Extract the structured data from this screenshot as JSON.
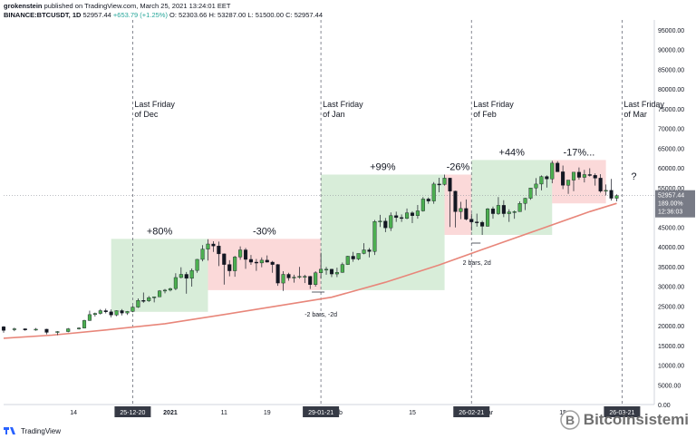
{
  "header": {
    "author": "grokenstein",
    "published": "published on TradingView.com, March 25, 2021 13:24:01 EET",
    "symbol": "BINANCE:BTCUSDT, 1D",
    "last": "52957.44",
    "change": "+653.79 (+1.25%)",
    "open": "O: 52303.66",
    "high": "H: 53287.00",
    "low": "L: 51500.00",
    "close": "C: 52957.44"
  },
  "footer": {
    "brand": "TradingView"
  },
  "watermark": {
    "text": "Bitcoinsistemi"
  },
  "colors": {
    "up": "#4caf50",
    "down": "#131722",
    "ma": "#e8867a",
    "green_zone": "rgba(76,175,80,0.22)",
    "red_zone": "rgba(239,83,80,0.22)"
  },
  "chart_data": {
    "type": "candlestick",
    "y_axis_ticks": [
      95000,
      90000,
      85000,
      80000,
      75000,
      70000,
      65000,
      60000,
      55000,
      50000,
      45000,
      40000,
      35000,
      30000,
      25000,
      20000,
      15000,
      10000,
      5000,
      0
    ],
    "ylim": [
      0,
      97500
    ],
    "price_label": {
      "value": "52957.44",
      "pct": "189.00%",
      "time": "12:36:03"
    },
    "x_ticks": [
      "14",
      "2021",
      "11",
      "19",
      "Feb",
      "15",
      "Mar",
      "15"
    ],
    "x_date_labels": [
      "25-12-20",
      "29-01-21",
      "26-02-21",
      "26-03-21"
    ],
    "vertical_lines": [
      {
        "label": "Last Friday\nof Dec",
        "date": "2020-12-25"
      },
      {
        "label": "Last Friday\nof Jan",
        "date": "2021-01-29"
      },
      {
        "label": "Last Friday\nof Feb",
        "date": "2021-02-26"
      },
      {
        "label": "Last Friday\nof Mar",
        "date": "2021-03-26"
      }
    ],
    "zones": [
      {
        "label": "+80%",
        "kind": "up",
        "from": "2020-12-21",
        "to": "2021-01-08",
        "low": 23500,
        "high": 42000
      },
      {
        "label": "-30%",
        "kind": "down",
        "from": "2021-01-08",
        "to": "2021-01-29",
        "low": 29000,
        "high": 42000
      },
      {
        "label": "+99%",
        "kind": "up",
        "from": "2021-01-29",
        "to": "2021-02-21",
        "low": 29000,
        "high": 58300
      },
      {
        "label": "-26%",
        "kind": "down",
        "from": "2021-02-21",
        "to": "2021-02-26",
        "low": 43000,
        "high": 58300
      },
      {
        "label": "+44%",
        "kind": "up",
        "from": "2021-02-26",
        "to": "2021-03-13",
        "low": 43000,
        "high": 62000
      },
      {
        "label": "-17%...",
        "kind": "down",
        "from": "2021-03-13",
        "to": "2021-03-23",
        "low": 51000,
        "high": 62000
      }
    ],
    "annotations": [
      {
        "text": "-2 bars, -2d",
        "date": "2021-01-29"
      },
      {
        "text": "2 bars, 2d",
        "date": "2021-02-26"
      },
      {
        "text": "?",
        "date": "2021-03-26"
      }
    ],
    "ohlc": [
      [
        "2020-12-01",
        19700,
        19900,
        18200,
        18800
      ],
      [
        "2020-12-03",
        19000,
        19500,
        18600,
        19200
      ],
      [
        "2020-12-05",
        19200,
        19300,
        18700,
        18900
      ],
      [
        "2020-12-07",
        18900,
        19400,
        18700,
        19100
      ],
      [
        "2020-12-09",
        19100,
        19200,
        17800,
        18300
      ],
      [
        "2020-12-11",
        18300,
        18600,
        17600,
        18500
      ],
      [
        "2020-12-13",
        18500,
        19400,
        18300,
        19200
      ],
      [
        "2020-12-15",
        19200,
        19600,
        19000,
        19400
      ],
      [
        "2020-12-16",
        19400,
        21500,
        19300,
        21300
      ],
      [
        "2020-12-17",
        21300,
        23800,
        21200,
        22800
      ],
      [
        "2020-12-18",
        22800,
        23300,
        22300,
        23100
      ],
      [
        "2020-12-19",
        23100,
        24200,
        22800,
        23800
      ],
      [
        "2020-12-20",
        23800,
        24300,
        23100,
        23500
      ],
      [
        "2020-12-21",
        23500,
        24100,
        22100,
        22700
      ],
      [
        "2020-12-22",
        22700,
        23900,
        22400,
        23800
      ],
      [
        "2020-12-23",
        23800,
        24200,
        22600,
        23200
      ],
      [
        "2020-12-24",
        23200,
        23700,
        22700,
        23600
      ],
      [
        "2020-12-25",
        23600,
        25000,
        23400,
        24700
      ],
      [
        "2020-12-26",
        24700,
        26900,
        24500,
        26400
      ],
      [
        "2020-12-27",
        26400,
        28400,
        25800,
        26300
      ],
      [
        "2020-12-28",
        26300,
        27500,
        26000,
        27100
      ],
      [
        "2020-12-29",
        27100,
        27400,
        25900,
        27300
      ],
      [
        "2020-12-30",
        27300,
        29000,
        27300,
        28800
      ],
      [
        "2020-12-31",
        28800,
        29300,
        28200,
        29000
      ],
      [
        "2021-01-01",
        29000,
        29600,
        28700,
        29400
      ],
      [
        "2021-01-02",
        29400,
        33300,
        29000,
        32200
      ],
      [
        "2021-01-03",
        32200,
        34800,
        32000,
        33000
      ],
      [
        "2021-01-04",
        33000,
        33600,
        28100,
        32000
      ],
      [
        "2021-01-05",
        32000,
        34500,
        29900,
        34000
      ],
      [
        "2021-01-06",
        34000,
        36900,
        33400,
        36800
      ],
      [
        "2021-01-07",
        36800,
        40400,
        36300,
        39400
      ],
      [
        "2021-01-08",
        39400,
        41900,
        36500,
        40700
      ],
      [
        "2021-01-09",
        40700,
        41400,
        38700,
        40200
      ],
      [
        "2021-01-10",
        40200,
        41300,
        35100,
        38200
      ],
      [
        "2021-01-11",
        38200,
        38300,
        30400,
        35500
      ],
      [
        "2021-01-12",
        35500,
        36600,
        32500,
        33900
      ],
      [
        "2021-01-13",
        33900,
        37700,
        32400,
        37400
      ],
      [
        "2021-01-14",
        37400,
        40100,
        36700,
        39200
      ],
      [
        "2021-01-15",
        39200,
        39700,
        34400,
        36800
      ],
      [
        "2021-01-16",
        36800,
        37900,
        35400,
        36100
      ],
      [
        "2021-01-17",
        36100,
        36900,
        33900,
        35900
      ],
      [
        "2021-01-18",
        35900,
        37300,
        34800,
        36600
      ],
      [
        "2021-01-19",
        36600,
        37800,
        36000,
        36100
      ],
      [
        "2021-01-20",
        36100,
        36400,
        33400,
        35500
      ],
      [
        "2021-01-21",
        35500,
        35600,
        30100,
        30800
      ],
      [
        "2021-01-22",
        30800,
        33800,
        28800,
        33000
      ],
      [
        "2021-01-23",
        33000,
        33400,
        31400,
        32100
      ],
      [
        "2021-01-24",
        32100,
        32900,
        30900,
        32300
      ],
      [
        "2021-01-25",
        32300,
        34900,
        31900,
        32500
      ],
      [
        "2021-01-26",
        32500,
        32900,
        30800,
        32500
      ],
      [
        "2021-01-27",
        32500,
        32600,
        29300,
        30400
      ],
      [
        "2021-01-28",
        30400,
        33800,
        29900,
        33400
      ],
      [
        "2021-01-29",
        33400,
        38500,
        31900,
        34300
      ],
      [
        "2021-01-30",
        34300,
        34900,
        32900,
        34300
      ],
      [
        "2021-01-31",
        34300,
        34400,
        32300,
        33100
      ],
      [
        "2021-02-01",
        33100,
        34700,
        32300,
        33500
      ],
      [
        "2021-02-02",
        33500,
        36000,
        33400,
        35500
      ],
      [
        "2021-02-03",
        35500,
        37700,
        35400,
        37600
      ],
      [
        "2021-02-04",
        37600,
        38700,
        36200,
        36900
      ],
      [
        "2021-02-05",
        36900,
        38300,
        36600,
        38300
      ],
      [
        "2021-02-06",
        38300,
        40900,
        38100,
        39200
      ],
      [
        "2021-02-07",
        39200,
        39700,
        37300,
        38800
      ],
      [
        "2021-02-08",
        38800,
        46800,
        37900,
        46400
      ],
      [
        "2021-02-09",
        46400,
        48100,
        45000,
        46500
      ],
      [
        "2021-02-10",
        46500,
        47300,
        43700,
        44800
      ],
      [
        "2021-02-11",
        44800,
        48700,
        44000,
        47900
      ],
      [
        "2021-02-12",
        47900,
        48900,
        46300,
        47400
      ],
      [
        "2021-02-13",
        47400,
        48200,
        46300,
        47200
      ],
      [
        "2021-02-14",
        47200,
        49700,
        47000,
        48600
      ],
      [
        "2021-02-15",
        48600,
        49000,
        46000,
        47900
      ],
      [
        "2021-02-16",
        47900,
        50600,
        47100,
        49100
      ],
      [
        "2021-02-17",
        49100,
        52600,
        48900,
        52100
      ],
      [
        "2021-02-18",
        52100,
        52500,
        50900,
        51600
      ],
      [
        "2021-02-19",
        51600,
        56400,
        50900,
        55900
      ],
      [
        "2021-02-20",
        55900,
        57500,
        53800,
        55800
      ],
      [
        "2021-02-21",
        55800,
        58300,
        55500,
        57400
      ],
      [
        "2021-02-22",
        57400,
        57500,
        45000,
        54100
      ],
      [
        "2021-02-23",
        54100,
        54200,
        44900,
        48900
      ],
      [
        "2021-02-24",
        48900,
        51400,
        47000,
        49700
      ],
      [
        "2021-02-25",
        49700,
        52000,
        46700,
        47000
      ],
      [
        "2021-02-26",
        47000,
        48400,
        44100,
        46300
      ],
      [
        "2021-02-27",
        46300,
        48400,
        45100,
        46200
      ],
      [
        "2021-02-28",
        46200,
        46600,
        43000,
        45200
      ],
      [
        "2021-03-01",
        45200,
        49800,
        45100,
        49600
      ],
      [
        "2021-03-02",
        49600,
        50200,
        47100,
        48400
      ],
      [
        "2021-03-03",
        48400,
        52600,
        48100,
        50500
      ],
      [
        "2021-03-04",
        50500,
        51800,
        47500,
        48400
      ],
      [
        "2021-03-05",
        48400,
        49500,
        46300,
        48800
      ],
      [
        "2021-03-06",
        48800,
        49200,
        47100,
        48900
      ],
      [
        "2021-03-07",
        48900,
        51500,
        48900,
        51000
      ],
      [
        "2021-03-08",
        51000,
        52400,
        49300,
        52300
      ],
      [
        "2021-03-09",
        52300,
        54900,
        51900,
        54900
      ],
      [
        "2021-03-10",
        54900,
        57400,
        53000,
        55900
      ],
      [
        "2021-03-11",
        55900,
        58100,
        54300,
        57800
      ],
      [
        "2021-03-12",
        57800,
        58100,
        55000,
        57200
      ],
      [
        "2021-03-13",
        57200,
        61800,
        56100,
        61200
      ],
      [
        "2021-03-14",
        61200,
        61700,
        59000,
        59000
      ],
      [
        "2021-03-15",
        59000,
        60600,
        54600,
        55600
      ],
      [
        "2021-03-16",
        55600,
        56900,
        53400,
        56900
      ],
      [
        "2021-03-17",
        56900,
        58900,
        54100,
        58900
      ],
      [
        "2021-03-18",
        58900,
        60100,
        57000,
        57600
      ],
      [
        "2021-03-19",
        57600,
        59500,
        56300,
        58300
      ],
      [
        "2021-03-20",
        58300,
        59900,
        57800,
        58100
      ],
      [
        "2021-03-21",
        58100,
        58600,
        55500,
        57400
      ],
      [
        "2021-03-22",
        57400,
        58400,
        53700,
        54100
      ],
      [
        "2021-03-23",
        54100,
        55800,
        53000,
        54300
      ],
      [
        "2021-03-24",
        54300,
        57200,
        51700,
        52300
      ],
      [
        "2021-03-25",
        52300,
        53300,
        51500,
        52957
      ]
    ],
    "ma": [
      [
        "2020-12-01",
        16800
      ],
      [
        "2020-12-10",
        17600
      ],
      [
        "2020-12-20",
        18900
      ],
      [
        "2020-12-31",
        20500
      ],
      [
        "2021-01-10",
        22600
      ],
      [
        "2021-01-20",
        24800
      ],
      [
        "2021-01-31",
        27200
      ],
      [
        "2021-02-10",
        31000
      ],
      [
        "2021-02-20",
        35400
      ],
      [
        "2021-02-28",
        39300
      ],
      [
        "2021-03-10",
        44100
      ],
      [
        "2021-03-20",
        48900
      ],
      [
        "2021-03-25",
        51000
      ]
    ]
  }
}
